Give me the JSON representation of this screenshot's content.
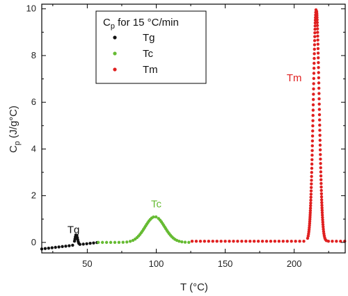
{
  "chart_data": {
    "type": "scatter",
    "xlabel": "T (°C)",
    "ylabel": "Cp (J/g°C)",
    "xlim": [
      17,
      237
    ],
    "ylim": [
      -0.45,
      10.2
    ],
    "xticks": [
      50,
      100,
      150,
      200
    ],
    "yticks": [
      0,
      2,
      4,
      6,
      8,
      10
    ],
    "grid": false,
    "legend": {
      "title": "Cp for 15 °C/min",
      "position": "top-left",
      "entries": [
        "Tg",
        "Tc",
        "Tm"
      ]
    },
    "series": [
      {
        "name": "Tg",
        "color": "#111111",
        "x_range": [
          17,
          58
        ],
        "features": [
          {
            "type": "baseline",
            "x": 17,
            "y": -0.28
          },
          {
            "type": "peak",
            "center": 42,
            "width": 1.3,
            "height": 0.45
          },
          {
            "type": "baseline",
            "x": 58,
            "y": 0.0
          }
        ]
      },
      {
        "name": "Tc",
        "color": "#66bb33",
        "x_range": [
          58,
          126
        ],
        "features": [
          {
            "type": "peak",
            "center": 99,
            "width": 10,
            "height": 1.1,
            "baseline": 0.0
          }
        ]
      },
      {
        "name": "Tm",
        "color": "#e02020",
        "x_range": [
          126,
          237
        ],
        "features": [
          {
            "type": "peak",
            "center": 216,
            "width": 3.0,
            "height": 9.95,
            "baseline": 0.05
          }
        ]
      }
    ],
    "annotations": [
      {
        "text": "Tg",
        "x": 40,
        "y": 0.4,
        "color": "#111111"
      },
      {
        "text": "Tc",
        "x": 100,
        "y": 1.5,
        "color": "#66bb33"
      },
      {
        "text": "Tm",
        "x": 200,
        "y": 6.9,
        "color": "#e02020"
      }
    ]
  },
  "labels": {
    "x_axis_title": "T (°C)",
    "y_axis_main": "C",
    "y_axis_sub": "p",
    "y_axis_rest": " (J/g°C)",
    "legend_title_main": "C",
    "legend_title_sub": "p",
    "legend_title_rest": " for 15 °C/min"
  }
}
